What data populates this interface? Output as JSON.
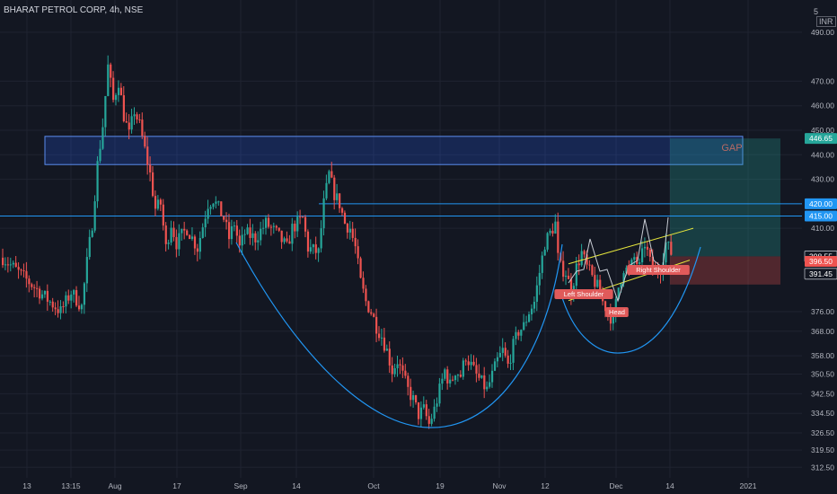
{
  "header": {
    "title": "BHARAT PETROL CORP, 4h, NSE",
    "currency_num": "5",
    "currency": "INR"
  },
  "colors": {
    "background": "#131722",
    "up": "#26a69a",
    "down": "#ef5350",
    "grid": "#1f2330",
    "axis_text": "#b2b5be",
    "hline": "#2196f3",
    "curve": "#2196f3",
    "channel": "#e6e63c",
    "pattern": "#c8ccd4",
    "gap_fill": "#2962ff",
    "label_bg": "#e05a5a"
  },
  "chart_data": {
    "type": "candlestick",
    "symbol": "BHARAT PETROL CORP",
    "timeframe": "4h",
    "exchange": "NSE",
    "ylim": [
      306,
      498
    ],
    "yticks": [
      312.5,
      319.5,
      326.5,
      334.5,
      342.5,
      350.5,
      358.0,
      368.0,
      376.0,
      410.0,
      430.0,
      440.0,
      450.0,
      460.0,
      470.0,
      490.0
    ],
    "xlabels": [
      "13",
      "13:15",
      "Aug",
      "17",
      "Sep",
      "14",
      "Oct",
      "19",
      "Nov",
      "12",
      "Dec",
      "14",
      "2021"
    ],
    "price_tags": [
      {
        "label": "446.65",
        "value": 446.65,
        "color": "#26a69a"
      },
      {
        "label": "420.00",
        "value": 420.0,
        "color": "#2196f3"
      },
      {
        "label": "415.00",
        "value": 415.0,
        "color": "#2196f3"
      },
      {
        "label": "398.55",
        "value": 398.55,
        "color": "#131722"
      },
      {
        "label": "396.50",
        "value": 396.5,
        "color": "#ef5350"
      },
      {
        "label": "391.45",
        "value": 391.45,
        "color": "#131722"
      }
    ],
    "annotations": [
      "GAP",
      "Left Shoulder",
      "Head",
      "Right Shoulder"
    ],
    "levels": {
      "gap_top": 447.5,
      "gap_bottom": 436.0,
      "resistance_1": 420.0,
      "resistance_2": 415.0
    },
    "position": {
      "target": 446.65,
      "entry": 398.55,
      "stop": 391.45
    },
    "path": [
      [
        0,
        398
      ],
      [
        6,
        392
      ],
      [
        12,
        386
      ],
      [
        18,
        380
      ],
      [
        22,
        376
      ],
      [
        26,
        384
      ],
      [
        30,
        378
      ],
      [
        32,
        396
      ],
      [
        34,
        412
      ],
      [
        36,
        436
      ],
      [
        38,
        452
      ],
      [
        40,
        476
      ],
      [
        42,
        462
      ],
      [
        44,
        470
      ],
      [
        46,
        456
      ],
      [
        48,
        448
      ],
      [
        50,
        458
      ],
      [
        52,
        452
      ],
      [
        54,
        442
      ],
      [
        56,
        432
      ],
      [
        58,
        418
      ],
      [
        60,
        420
      ],
      [
        62,
        402
      ],
      [
        64,
        412
      ],
      [
        66,
        404
      ],
      [
        70,
        410
      ],
      [
        74,
        402
      ],
      [
        78,
        420
      ],
      [
        80,
        422
      ],
      [
        82,
        418
      ],
      [
        84,
        414
      ],
      [
        86,
        406
      ],
      [
        88,
        412
      ],
      [
        90,
        402
      ],
      [
        92,
        408
      ],
      [
        96,
        406
      ],
      [
        100,
        412
      ],
      [
        104,
        408
      ],
      [
        108,
        402
      ],
      [
        110,
        410
      ],
      [
        114,
        414
      ],
      [
        116,
        402
      ],
      [
        120,
        400
      ],
      [
        122,
        420
      ],
      [
        124,
        432
      ],
      [
        126,
        424
      ],
      [
        128,
        420
      ],
      [
        130,
        412
      ],
      [
        132,
        410
      ],
      [
        134,
        402
      ],
      [
        136,
        388
      ],
      [
        138,
        380
      ],
      [
        140,
        376
      ],
      [
        142,
        370
      ],
      [
        144,
        366
      ],
      [
        146,
        360
      ],
      [
        148,
        352
      ],
      [
        150,
        356
      ],
      [
        152,
        350
      ],
      [
        154,
        344
      ],
      [
        156,
        340
      ],
      [
        158,
        334
      ],
      [
        160,
        336
      ],
      [
        162,
        330
      ],
      [
        164,
        336
      ],
      [
        166,
        344
      ],
      [
        168,
        352
      ],
      [
        170,
        346
      ],
      [
        172,
        352
      ],
      [
        174,
        350
      ],
      [
        176,
        358
      ],
      [
        178,
        354
      ],
      [
        180,
        350
      ],
      [
        184,
        344
      ],
      [
        188,
        356
      ],
      [
        190,
        360
      ],
      [
        192,
        354
      ],
      [
        194,
        362
      ],
      [
        196,
        368
      ],
      [
        198,
        370
      ],
      [
        200,
        376
      ],
      [
        202,
        380
      ],
      [
        204,
        392
      ],
      [
        206,
        404
      ],
      [
        208,
        408
      ],
      [
        210,
        412
      ],
      [
        211,
        398
      ],
      [
        212,
        394
      ],
      [
        214,
        392
      ],
      [
        216,
        384
      ],
      [
        218,
        394
      ],
      [
        220,
        400
      ],
      [
        222,
        394
      ],
      [
        224,
        390
      ],
      [
        226,
        386
      ],
      [
        228,
        380
      ],
      [
        230,
        376
      ],
      [
        232,
        372
      ],
      [
        234,
        386
      ],
      [
        236,
        394
      ],
      [
        238,
        392
      ],
      [
        240,
        398
      ],
      [
        242,
        394
      ],
      [
        244,
        404
      ],
      [
        246,
        396
      ],
      [
        248,
        392
      ],
      [
        250,
        394
      ],
      [
        252,
        404
      ],
      [
        254,
        400
      ]
    ]
  }
}
